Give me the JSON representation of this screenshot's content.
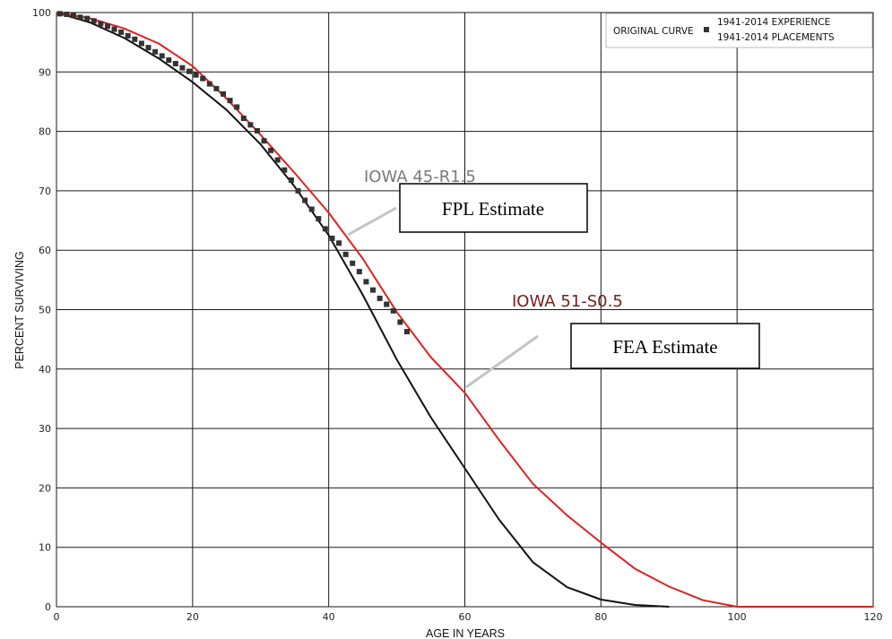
{
  "chart_data": {
    "type": "line",
    "xlabel": "AGE IN YEARS",
    "ylabel": "PERCENT SURVIVING",
    "xlim": [
      0,
      120
    ],
    "ylim": [
      0,
      100
    ],
    "xticks": [
      0,
      20,
      40,
      60,
      80,
      100,
      120
    ],
    "yticks": [
      0,
      10,
      20,
      30,
      40,
      50,
      60,
      70,
      80,
      90,
      100
    ],
    "grid": true,
    "legend": {
      "placement": "top-right",
      "label": "ORIGINAL CURVE",
      "entries": [
        "1941-2014 EXPERIENCE",
        "1941-2014 PLACEMENTS"
      ]
    },
    "series": [
      {
        "name": "IOWA 45-R1.5",
        "color": "#111111",
        "style": "line",
        "x": [
          0,
          5,
          10,
          15,
          20,
          25,
          30,
          35,
          40,
          45,
          50,
          55,
          60,
          65,
          70,
          75,
          80,
          85,
          90
        ],
        "y": [
          100,
          98.3,
          95.7,
          92.3,
          88.3,
          83.6,
          77.8,
          70.7,
          62.5,
          52.5,
          41.6,
          31.9,
          23.3,
          14.7,
          7.5,
          3.3,
          1.2,
          0.3,
          0
        ]
      },
      {
        "name": "IOWA 51-S0.5",
        "color": "#e02020",
        "style": "line",
        "x": [
          0,
          5,
          10,
          15,
          20,
          25,
          30,
          35,
          40,
          45,
          50,
          55,
          60,
          65,
          70,
          75,
          80,
          85,
          90,
          95,
          100,
          120
        ],
        "y": [
          100,
          99,
          97.3,
          94.8,
          91,
          85.5,
          79.4,
          73,
          66.3,
          58.6,
          49.6,
          42,
          36,
          28.1,
          20.7,
          15.4,
          10.8,
          6.4,
          3.4,
          1.1,
          0,
          0
        ]
      },
      {
        "name": "1941-2014 EXPERIENCE",
        "color": "#333333",
        "style": "markers",
        "x": [
          0.5,
          1.5,
          2.5,
          3.5,
          4.5,
          5.5,
          6.5,
          7.5,
          8.5,
          9.5,
          10.5,
          11.5,
          12.5,
          13.5,
          14.5,
          15.5,
          16.5,
          17.5,
          18.5,
          19.5,
          20.5,
          21.5,
          22.5,
          23.5,
          24.5,
          25.5,
          26.5,
          27.5,
          28.5,
          29.5,
          30.5,
          31.5,
          32.5,
          33.5,
          34.5,
          35.5,
          36.5,
          37.5,
          38.5,
          39.5,
          40.5,
          41.5,
          42.5,
          43.5,
          44.5,
          45.5,
          46.5,
          47.5,
          48.5,
          49.5,
          50.5,
          51.5
        ],
        "y": [
          99.8,
          99.7,
          99.5,
          99.2,
          99,
          98.6,
          98.1,
          97.7,
          97.2,
          96.7,
          96.1,
          95.5,
          94.8,
          94.1,
          93.4,
          92.7,
          92,
          91.4,
          90.7,
          90.1,
          89.5,
          88.9,
          88,
          87.2,
          86.3,
          85.2,
          84.1,
          82.2,
          81.1,
          80.1,
          78.4,
          76.8,
          75.2,
          73.5,
          71.8,
          70,
          68.4,
          66.9,
          65.3,
          63.6,
          62,
          61.2,
          59.3,
          57.8,
          56.4,
          54.7,
          53.3,
          51.9,
          50.9,
          49.8,
          47.9,
          46.3
        ]
      }
    ],
    "annotations": [
      {
        "id": "iowa45",
        "text": "IOWA 45-R1.5",
        "color": "#7a7a7a"
      },
      {
        "id": "iowa51",
        "text": "IOWA 51-S0.5",
        "color": "#7a1c1c"
      },
      {
        "id": "fpl",
        "text": "FPL Estimate"
      },
      {
        "id": "fea",
        "text": "FEA Estimate"
      }
    ]
  }
}
